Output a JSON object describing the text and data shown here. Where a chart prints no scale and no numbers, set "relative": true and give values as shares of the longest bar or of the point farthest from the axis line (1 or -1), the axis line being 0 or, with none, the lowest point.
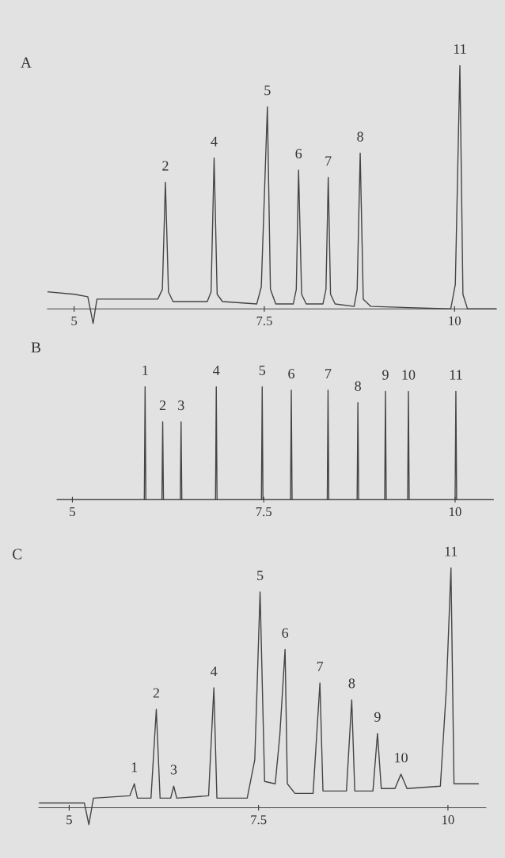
{
  "chart_data": [
    {
      "type": "line",
      "title": "A",
      "relative": true,
      "tick_labels": "x",
      "xlim": [
        4.65,
        10.55
      ],
      "xticks": [
        5,
        7.5,
        10
      ],
      "x": [
        4.65,
        5.0,
        5.18,
        5.25,
        5.3,
        6.1,
        6.16,
        6.2,
        6.24,
        6.3,
        6.75,
        6.8,
        6.84,
        6.88,
        6.95,
        7.4,
        7.46,
        7.54,
        7.58,
        7.65,
        7.88,
        7.92,
        7.95,
        7.99,
        8.05,
        8.27,
        8.31,
        8.34,
        8.37,
        8.43,
        8.68,
        8.72,
        8.76,
        8.8,
        8.9,
        9.95,
        10.01,
        10.07,
        10.11,
        10.17,
        10.55
      ],
      "series": [
        {
          "color": "#444444",
          "values": [
            0.07,
            0.06,
            0.05,
            -0.06,
            0.04,
            0.04,
            0.08,
            0.52,
            0.07,
            0.03,
            0.03,
            0.07,
            0.62,
            0.06,
            0.03,
            0.02,
            0.09,
            0.83,
            0.08,
            0.02,
            0.02,
            0.08,
            0.57,
            0.06,
            0.02,
            0.02,
            0.08,
            0.54,
            0.06,
            0.02,
            0.01,
            0.08,
            0.64,
            0.04,
            0.01,
            0.0,
            0.1,
            1.0,
            0.06,
            0.0,
            0.0
          ]
        }
      ],
      "annotations": [
        {
          "text": "2",
          "x": 6.2,
          "y": 0.52
        },
        {
          "text": "4",
          "x": 6.84,
          "y": 0.62
        },
        {
          "text": "5",
          "x": 7.54,
          "y": 0.83
        },
        {
          "text": "6",
          "x": 7.95,
          "y": 0.57
        },
        {
          "text": "7",
          "x": 8.34,
          "y": 0.54
        },
        {
          "text": "8",
          "x": 8.76,
          "y": 0.64
        },
        {
          "text": "11",
          "x": 10.07,
          "y": 1.0
        }
      ]
    },
    {
      "type": "line",
      "title": "B",
      "relative": true,
      "tick_labels": "x",
      "xlim": [
        4.8,
        10.5
      ],
      "xticks": [
        5,
        7.5,
        10
      ],
      "x": [
        4.8,
        5.94,
        5.95,
        5.96,
        6.17,
        6.18,
        6.19,
        6.41,
        6.42,
        6.43,
        6.87,
        6.88,
        6.89,
        7.47,
        7.48,
        7.49,
        7.85,
        7.86,
        7.87,
        8.33,
        8.34,
        8.35,
        8.72,
        8.73,
        8.74,
        9.08,
        9.09,
        9.1,
        9.38,
        9.39,
        9.4,
        10.0,
        10.01,
        10.02,
        10.5
      ],
      "series": [
        {
          "color": "#444444",
          "values": [
            0,
            0,
            1.0,
            0,
            0,
            0.69,
            0,
            0,
            0.69,
            0,
            0,
            1.0,
            0,
            0,
            1.0,
            0,
            0,
            0.97,
            0,
            0,
            0.97,
            0,
            0,
            0.86,
            0,
            0,
            0.96,
            0,
            0,
            0.96,
            0,
            0,
            0.96,
            0,
            0
          ]
        }
      ],
      "annotations": [
        {
          "text": "1",
          "x": 5.95,
          "y": 1.0
        },
        {
          "text": "2",
          "x": 6.18,
          "y": 0.69
        },
        {
          "text": "3",
          "x": 6.42,
          "y": 0.69
        },
        {
          "text": "4",
          "x": 6.88,
          "y": 1.0
        },
        {
          "text": "5",
          "x": 7.48,
          "y": 1.0
        },
        {
          "text": "6",
          "x": 7.86,
          "y": 0.97
        },
        {
          "text": "7",
          "x": 8.34,
          "y": 0.97
        },
        {
          "text": "8",
          "x": 8.73,
          "y": 0.86
        },
        {
          "text": "9",
          "x": 9.09,
          "y": 0.96
        },
        {
          "text": "10",
          "x": 9.39,
          "y": 0.96
        },
        {
          "text": "11",
          "x": 10.01,
          "y": 0.96
        }
      ]
    },
    {
      "type": "line",
      "title": "C",
      "relative": true,
      "tick_labels": "x",
      "xlim": [
        4.6,
        10.5
      ],
      "xticks": [
        5,
        7.5,
        10
      ],
      "x": [
        4.6,
        5.0,
        5.2,
        5.26,
        5.32,
        5.8,
        5.86,
        5.9,
        6.08,
        6.15,
        6.2,
        6.34,
        6.38,
        6.42,
        6.84,
        6.91,
        6.95,
        7.35,
        7.45,
        7.52,
        7.58,
        7.72,
        7.78,
        7.85,
        7.88,
        7.98,
        8.22,
        8.31,
        8.35,
        8.66,
        8.73,
        8.77,
        9.01,
        9.07,
        9.12,
        9.3,
        9.38,
        9.46,
        9.9,
        9.98,
        10.04,
        10.08,
        10.4
      ],
      "series": [
        {
          "color": "#444444",
          "values": [
            0.02,
            0.02,
            0.02,
            -0.07,
            0.04,
            0.05,
            0.1,
            0.04,
            0.04,
            0.41,
            0.04,
            0.04,
            0.09,
            0.04,
            0.05,
            0.5,
            0.04,
            0.04,
            0.2,
            0.9,
            0.11,
            0.1,
            0.3,
            0.66,
            0.1,
            0.06,
            0.06,
            0.52,
            0.07,
            0.07,
            0.45,
            0.07,
            0.07,
            0.31,
            0.08,
            0.08,
            0.14,
            0.08,
            0.09,
            0.5,
            1.0,
            0.1,
            0.1
          ]
        }
      ],
      "annotations": [
        {
          "text": "1",
          "x": 5.86,
          "y": 0.1
        },
        {
          "text": "2",
          "x": 6.15,
          "y": 0.41
        },
        {
          "text": "3",
          "x": 6.38,
          "y": 0.09
        },
        {
          "text": "4",
          "x": 6.91,
          "y": 0.5
        },
        {
          "text": "5",
          "x": 7.52,
          "y": 0.9
        },
        {
          "text": "6",
          "x": 7.85,
          "y": 0.66
        },
        {
          "text": "7",
          "x": 8.31,
          "y": 0.52
        },
        {
          "text": "8",
          "x": 8.73,
          "y": 0.45
        },
        {
          "text": "9",
          "x": 9.07,
          "y": 0.31
        },
        {
          "text": "10",
          "x": 9.38,
          "y": 0.14
        },
        {
          "text": "11",
          "x": 10.04,
          "y": 1.0
        }
      ]
    }
  ]
}
